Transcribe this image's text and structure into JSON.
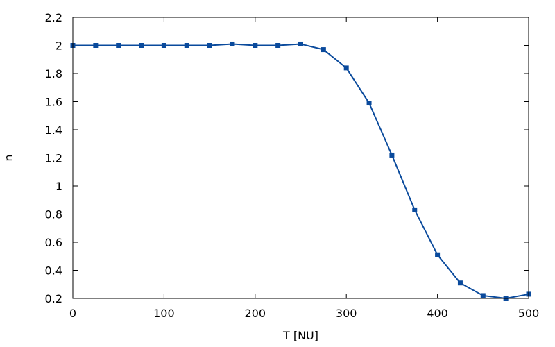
{
  "chart_data": {
    "type": "line",
    "xlabel": "T [NU]",
    "ylabel": "n",
    "xlim": [
      0,
      500
    ],
    "ylim": [
      0.2,
      2.2
    ],
    "xticks": [
      0,
      100,
      200,
      300,
      400,
      500
    ],
    "yticks": [
      0.2,
      0.4,
      0.6,
      0.8,
      1,
      1.2,
      1.4,
      1.6,
      1.8,
      2,
      2.2
    ],
    "xtick_labels": [
      "0",
      "100",
      "200",
      "300",
      "400",
      "500"
    ],
    "ytick_labels": [
      "0.2",
      "0.4",
      "0.6",
      "0.8",
      "1",
      "1.2",
      "1.4",
      "1.6",
      "1.8",
      "2",
      "2.2"
    ],
    "grid": false,
    "legend": "none",
    "series": [
      {
        "color": "#0a4a9c",
        "marker": "square",
        "x": [
          0,
          25,
          50,
          75,
          100,
          125,
          150,
          175,
          200,
          225,
          250,
          275,
          300,
          325,
          350,
          375,
          400,
          425,
          450,
          475,
          500
        ],
        "y": [
          2.0,
          2.0,
          2.0,
          2.0,
          2.0,
          2.0,
          2.0,
          2.01,
          2.0,
          2.0,
          2.01,
          1.97,
          1.84,
          1.59,
          1.22,
          0.83,
          0.51,
          0.31,
          0.22,
          0.2,
          0.23
        ]
      }
    ]
  }
}
